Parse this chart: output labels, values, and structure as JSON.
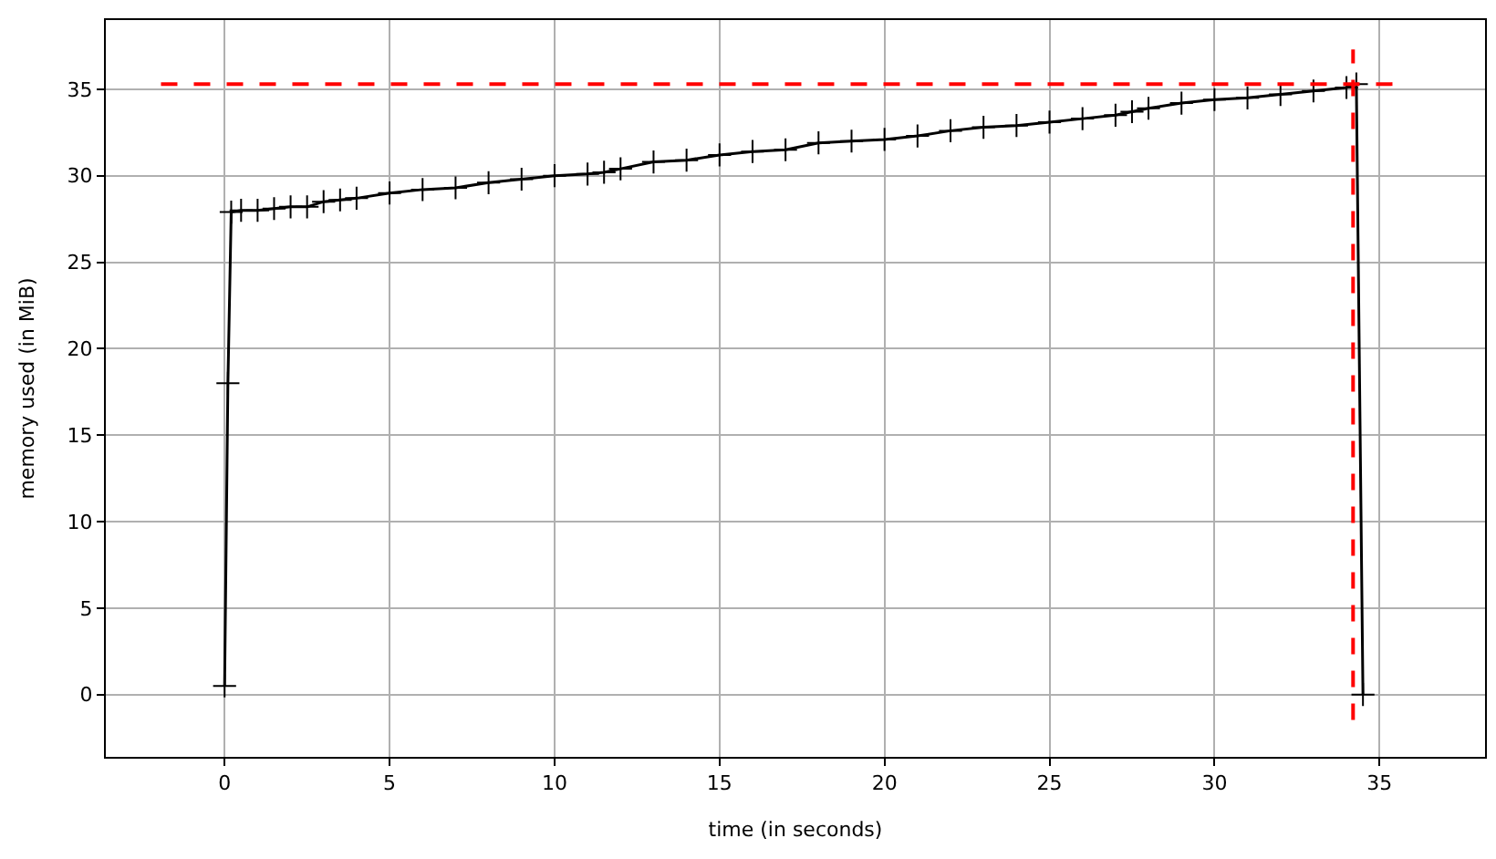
{
  "chart_data": {
    "type": "line",
    "xlabel": "time (in seconds)",
    "ylabel": "memory used (in MiB)",
    "x": [
      0,
      0.1,
      0.2,
      0.5,
      1,
      1.5,
      2,
      2.5,
      3,
      3.5,
      4,
      5,
      6,
      7,
      8,
      9,
      10,
      11,
      11.5,
      12,
      13,
      14,
      15,
      16,
      17,
      18,
      19,
      20,
      21,
      22,
      23,
      24,
      25,
      26,
      27,
      27.5,
      28,
      29,
      30,
      31,
      32,
      33,
      34,
      34.3,
      34.5
    ],
    "series": [
      {
        "color": "#000000",
        "values": [
          0.5,
          18,
          27.9,
          28.0,
          28.0,
          28.1,
          28.2,
          28.2,
          28.5,
          28.6,
          28.7,
          29.0,
          29.2,
          29.3,
          29.6,
          29.8,
          30.0,
          30.1,
          30.2,
          30.4,
          30.8,
          30.9,
          31.2,
          31.4,
          31.5,
          31.9,
          32.0,
          32.1,
          32.3,
          32.6,
          32.8,
          32.9,
          33.1,
          33.3,
          33.5,
          33.7,
          33.9,
          34.2,
          34.4,
          34.5,
          34.7,
          34.9,
          35.1,
          35.3,
          0
        ]
      }
    ],
    "xlim": [
      -3.6,
      38.2
    ],
    "ylim": [
      -3.6,
      39
    ],
    "xticks": [
      0,
      5,
      10,
      15,
      20,
      25,
      30,
      35
    ],
    "yticks": [
      0,
      5,
      10,
      15,
      20,
      25,
      30,
      35
    ],
    "grid": true,
    "marker": "cross",
    "line_style": "solid",
    "ref_lines": [
      {
        "axis": "y",
        "value": 35.3,
        "color": "#ff0000",
        "line_style": "dashed"
      },
      {
        "axis": "x",
        "value": 34.2,
        "color": "#ff0000",
        "line_style": "dashed"
      }
    ]
  }
}
